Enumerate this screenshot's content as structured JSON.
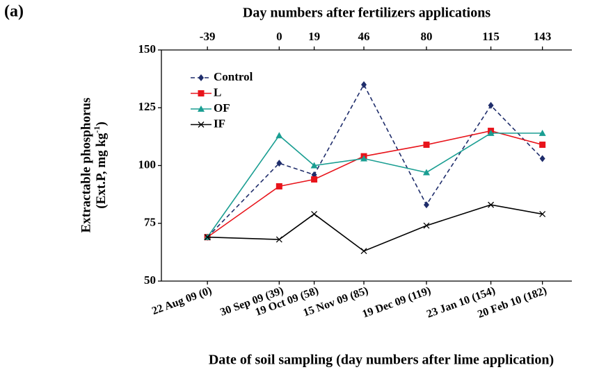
{
  "panel_label": "(a)",
  "chart_data": {
    "type": "line",
    "title": "Day numbers after fertilizers applications",
    "xlabel": "Date of soil sampling (day numbers after lime application)",
    "ylabel": [
      "Extractable phosphorus",
      "(Ext.P, mg kg",
      "-1",
      ")"
    ],
    "x": [
      0,
      39,
      58,
      85,
      119,
      154,
      182
    ],
    "xlim": [
      -25,
      198
    ],
    "xticks": [
      {
        "value": 0,
        "label": "22 Aug 09 (0)"
      },
      {
        "value": 39,
        "label": "30 Sep 09 (39)"
      },
      {
        "value": 58,
        "label": "19 Oct 09 (58)"
      },
      {
        "value": 85,
        "label": "15 Nov 09 (85)"
      },
      {
        "value": 119,
        "label": "19 Dec 09 (119)"
      },
      {
        "value": 154,
        "label": "23 Jan 10 (154)"
      },
      {
        "value": 182,
        "label": "20 Feb 10 (182)"
      }
    ],
    "x2ticks": [
      {
        "value": 0,
        "label": "-39"
      },
      {
        "value": 39,
        "label": "0"
      },
      {
        "value": 58,
        "label": "19"
      },
      {
        "value": 85,
        "label": "46"
      },
      {
        "value": 119,
        "label": "80"
      },
      {
        "value": 154,
        "label": "115"
      },
      {
        "value": 182,
        "label": "143"
      }
    ],
    "ylim": [
      50,
      150
    ],
    "yticks": [
      50,
      75,
      100,
      125,
      150
    ],
    "legend": "upper left",
    "series": [
      {
        "name": "Control",
        "color": "#1f2d6b",
        "dashed": true,
        "marker": "diamond",
        "values": [
          69,
          101,
          96,
          135,
          83,
          126,
          103
        ]
      },
      {
        "name": "L",
        "color": "#e8141b",
        "dashed": false,
        "marker": "square",
        "values": [
          69,
          91,
          94,
          104,
          109,
          115,
          109
        ]
      },
      {
        "name": "OF",
        "color": "#1a9e92",
        "dashed": false,
        "marker": "triangle",
        "values": [
          69,
          113,
          100,
          103,
          97,
          114,
          114
        ]
      },
      {
        "name": "IF",
        "color": "#000000",
        "dashed": false,
        "marker": "x",
        "values": [
          69,
          68,
          79,
          63,
          74,
          83,
          79
        ]
      }
    ]
  }
}
